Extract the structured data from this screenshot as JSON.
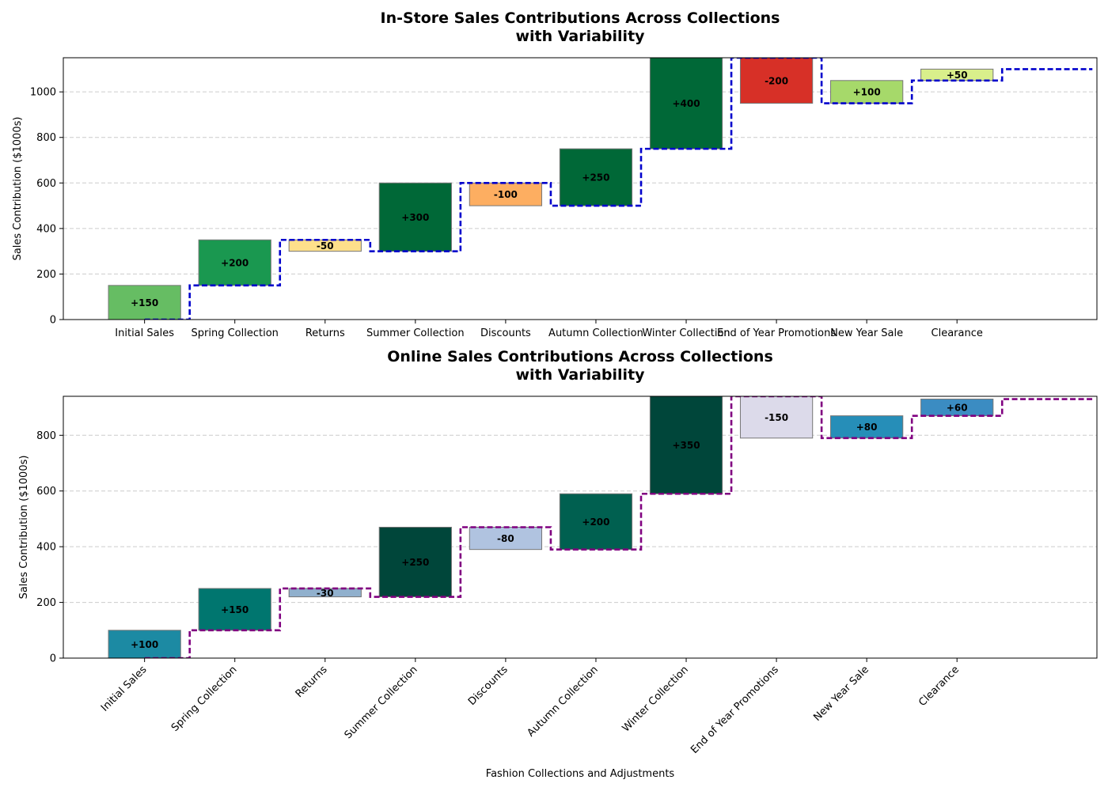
{
  "chart_data": [
    {
      "type": "waterfall",
      "title_lines": [
        "In-Store Sales Contributions Across Collections",
        "with Variability"
      ],
      "xlabel": "",
      "ylabel": "Sales Contribution ($1000s)",
      "ylim": [
        0,
        1150
      ],
      "yticks": [
        0,
        200,
        400,
        600,
        800,
        1000
      ],
      "grid": "y-dashed",
      "xtick_rotation": 0,
      "connector_color": "#0000cc",
      "categories": [
        "Initial Sales",
        "Spring Collection",
        "Returns",
        "Summer Collection",
        "Discounts",
        "Autumn Collection",
        "Winter Collection",
        "End of Year Promotions",
        "New Year Sale",
        "Clearance"
      ],
      "values": [
        150,
        200,
        -50,
        300,
        -100,
        250,
        400,
        -200,
        100,
        50
      ],
      "value_labels": [
        "+150",
        "+200",
        "-50",
        "+300",
        "-100",
        "+250",
        "+400",
        "-200",
        "+100",
        "+50"
      ],
      "colors": [
        "#66bd63",
        "#1a9850",
        "#fee08b",
        "#006837",
        "#fdae61",
        "#006837",
        "#006837",
        "#d73027",
        "#a6d96a",
        "#d9ef8b"
      ]
    },
    {
      "type": "waterfall",
      "title_lines": [
        "Online Sales Contributions Across Collections",
        "with Variability"
      ],
      "xlabel": "Fashion Collections and Adjustments",
      "ylabel": "Sales Contribution ($1000s)",
      "ylim": [
        0,
        940
      ],
      "yticks": [
        0,
        200,
        400,
        600,
        800
      ],
      "grid": "y-dashed",
      "xtick_rotation": -45,
      "connector_color": "#800080",
      "categories": [
        "Initial Sales",
        "Spring Collection",
        "Returns",
        "Summer Collection",
        "Discounts",
        "Autumn Collection",
        "Winter Collection",
        "End of Year Promotions",
        "New Year Sale",
        "Clearance"
      ],
      "values": [
        100,
        150,
        -30,
        250,
        -80,
        200,
        350,
        -150,
        80,
        60
      ],
      "value_labels": [
        "+100",
        "+150",
        "-30",
        "+250",
        "-80",
        "+200",
        "+350",
        "-150",
        "+80",
        "+60"
      ],
      "colors": [
        "#1c8aa3",
        "#00766f",
        "#90b0cd",
        "#00463a",
        "#b0c3e0",
        "#006050",
        "#00463a",
        "#dcdaea",
        "#268eb8",
        "#3b8cc2"
      ]
    }
  ]
}
